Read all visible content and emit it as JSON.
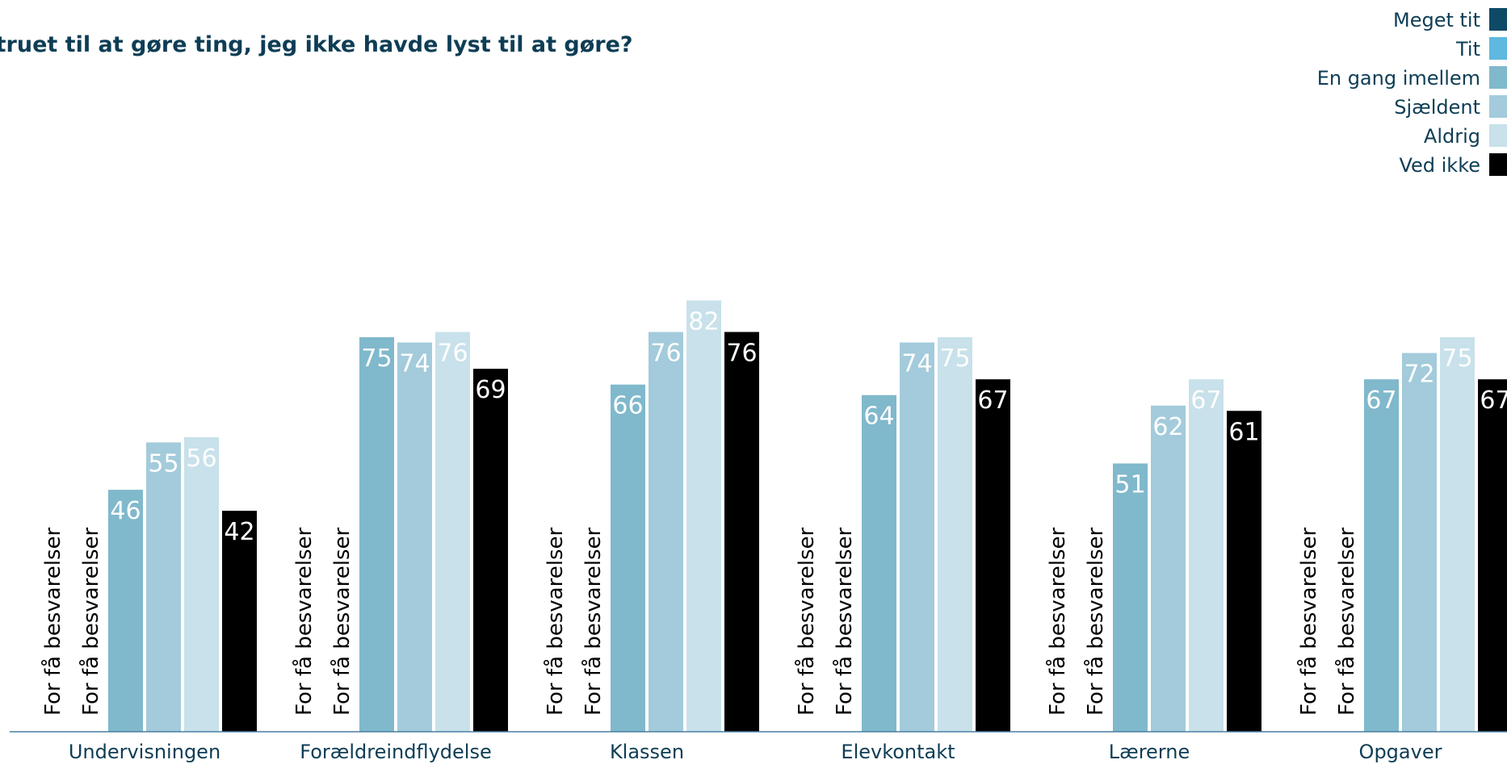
{
  "chart_data": {
    "type": "bar",
    "title": "et truet til at gøre ting, jeg ikke havde lyst til at gøre?",
    "xlabel": "",
    "ylabel": "",
    "ylim": [
      0,
      100
    ],
    "grid": false,
    "legend_position": "top-right",
    "categories": [
      "Undervisningen",
      "Forældreindflydelse",
      "Klassen",
      "Elevkontakt",
      "Lærerne",
      "Opgaver"
    ],
    "series": [
      {
        "name": "Meget tit",
        "color": "#0e4a66",
        "values": [
          null,
          null,
          null,
          null,
          null,
          null
        ]
      },
      {
        "name": "Tit",
        "color": "#5fb8df",
        "values": [
          null,
          null,
          null,
          null,
          null,
          null
        ]
      },
      {
        "name": "En gang imellem",
        "color": "#80b8cc",
        "values": [
          46,
          75,
          66,
          64,
          51,
          67
        ]
      },
      {
        "name": "Sjældent",
        "color": "#a3cbdb",
        "values": [
          55,
          74,
          76,
          74,
          62,
          72
        ]
      },
      {
        "name": "Aldrig",
        "color": "#c8e1ea",
        "values": [
          56,
          76,
          82,
          75,
          67,
          75
        ]
      },
      {
        "name": "Ved ikke",
        "color": "#000000",
        "values": [
          42,
          69,
          76,
          67,
          61,
          67
        ]
      }
    ],
    "missing_label": "For få besvarelser"
  }
}
